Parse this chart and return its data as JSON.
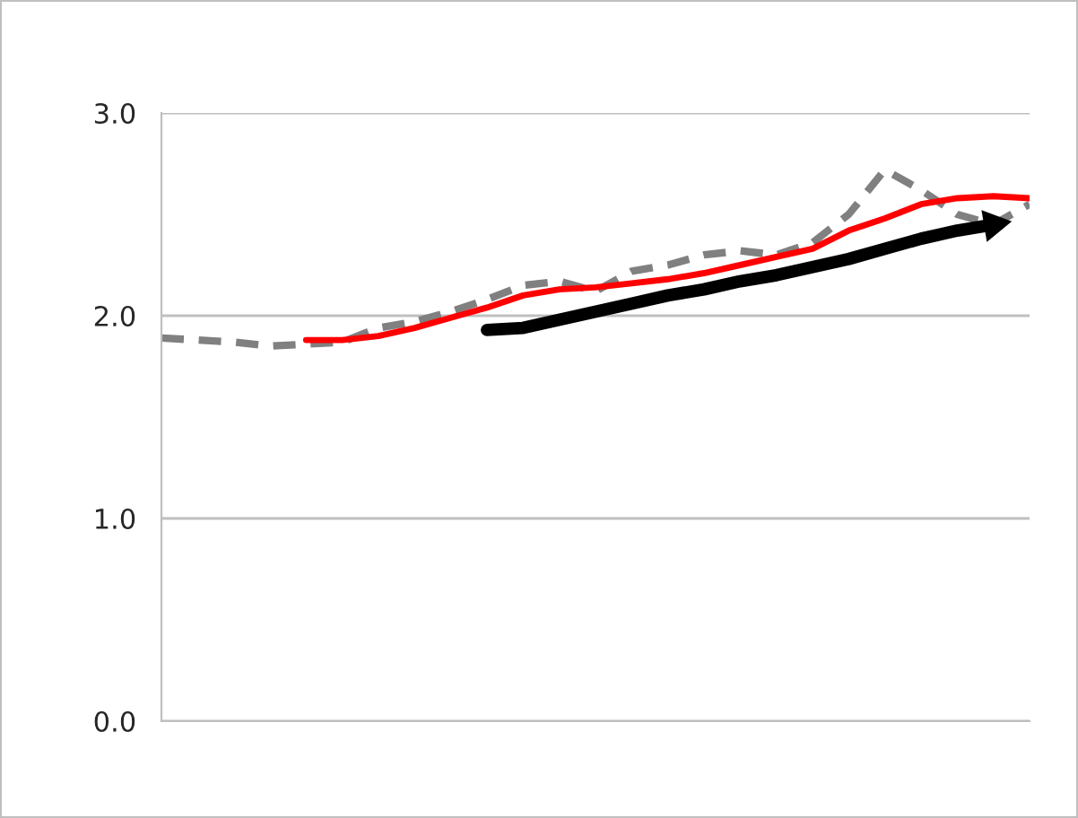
{
  "chart_data": {
    "type": "line",
    "categories": [
      null,
      null,
      null,
      null,
      null,
      null,
      null,
      null,
      null,
      null,
      null,
      null,
      null,
      null,
      null,
      null,
      null,
      null,
      null,
      null,
      null,
      null,
      null,
      null,
      null
    ],
    "series": [
      {
        "color": "#808080",
        "line_style": "dashed",
        "values": [
          1.89,
          1.88,
          1.87,
          1.85,
          1.86,
          1.87,
          1.94,
          1.97,
          2.02,
          2.08,
          2.15,
          2.17,
          2.12,
          2.22,
          2.25,
          2.3,
          2.32,
          2.3,
          2.36,
          2.5,
          2.72,
          2.62,
          2.5,
          2.45,
          2.55
        ]
      },
      {
        "color": "#ff0000",
        "line_style": "solid",
        "values": [
          null,
          null,
          null,
          null,
          1.88,
          1.88,
          1.9,
          1.94,
          1.99,
          2.04,
          2.1,
          2.13,
          2.14,
          2.16,
          2.18,
          2.21,
          2.25,
          2.29,
          2.33,
          2.42,
          2.48,
          2.55,
          2.58,
          2.59,
          2.58
        ]
      },
      {
        "color": "#000000",
        "line_style": "solid",
        "values": [
          null,
          null,
          null,
          null,
          null,
          null,
          null,
          null,
          null,
          1.93,
          1.94,
          1.98,
          2.02,
          2.06,
          2.1,
          2.13,
          2.17,
          2.2,
          2.24,
          2.28,
          2.33,
          2.38,
          2.42,
          2.45,
          null
        ]
      }
    ],
    "ylim": [
      0,
      3
    ],
    "yticks": [
      {
        "value": 0,
        "label": "0.0"
      },
      {
        "value": 1,
        "label": "1.0"
      },
      {
        "value": 2,
        "label": "2.0"
      },
      {
        "value": 3,
        "label": "3.0"
      }
    ],
    "grid": "y",
    "legend": false,
    "marker": "none"
  }
}
